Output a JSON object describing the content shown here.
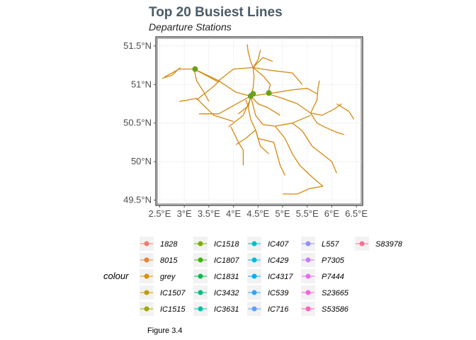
{
  "chart_data": {
    "type": "line",
    "title": "Top 20 Busiest Lines",
    "subtitle": "Departure Stations",
    "xlabel": "",
    "ylabel": "",
    "caption": "Figure 3.4",
    "xlim": [
      2.45,
      6.6
    ],
    "ylim": [
      49.45,
      51.6
    ],
    "x_ticks": [
      2.5,
      3.0,
      3.5,
      4.0,
      4.5,
      5.0,
      5.5,
      6.0,
      6.5
    ],
    "x_tick_labels": [
      "2.5°E",
      "3°E",
      "3.5°E",
      "4°E",
      "4.5°E",
      "5°E",
      "5.5°E",
      "6°E",
      "6.5°E"
    ],
    "y_ticks": [
      49.5,
      50.0,
      50.5,
      51.0,
      51.5
    ],
    "y_tick_labels": [
      "49.5°N",
      "50°N",
      "50.5°N",
      "51°N",
      "51.5°N"
    ],
    "grid": true,
    "legend_position": "bottom",
    "line_color": "#d4890f",
    "rail_lines": [
      [
        [
          2.6,
          51.1
        ],
        [
          2.9,
          51.2
        ],
        [
          3.2,
          51.2
        ],
        [
          3.7,
          51.05
        ],
        [
          4.05,
          50.9
        ],
        [
          4.35,
          50.85
        ]
      ],
      [
        [
          2.55,
          51.08
        ],
        [
          2.75,
          51.12
        ],
        [
          2.92,
          51.22
        ]
      ],
      [
        [
          3.2,
          51.2
        ],
        [
          3.5,
          51.1
        ],
        [
          3.7,
          51.03
        ]
      ],
      [
        [
          3.7,
          51.05
        ],
        [
          4.0,
          51.2
        ],
        [
          4.4,
          51.22
        ]
      ],
      [
        [
          3.25,
          50.8
        ],
        [
          3.55,
          50.95
        ],
        [
          3.72,
          51.05
        ]
      ],
      [
        [
          2.9,
          50.78
        ],
        [
          3.25,
          50.82
        ],
        [
          3.6,
          50.6
        ],
        [
          4.0,
          50.52
        ]
      ],
      [
        [
          3.3,
          50.62
        ],
        [
          3.7,
          50.62
        ],
        [
          4.35,
          50.85
        ]
      ],
      [
        [
          3.9,
          50.45
        ],
        [
          4.2,
          50.6
        ],
        [
          4.35,
          50.82
        ]
      ],
      [
        [
          4.35,
          50.85
        ],
        [
          4.4,
          50.95
        ],
        [
          4.42,
          51.1
        ],
        [
          4.4,
          51.22
        ],
        [
          4.35,
          51.3
        ],
        [
          4.3,
          51.42
        ],
        [
          4.28,
          51.52
        ]
      ],
      [
        [
          4.4,
          51.22
        ],
        [
          4.5,
          51.32
        ],
        [
          4.55,
          51.45
        ]
      ],
      [
        [
          4.4,
          51.22
        ],
        [
          4.62,
          51.1
        ],
        [
          4.75,
          51.0
        ],
        [
          4.7,
          50.88
        ]
      ],
      [
        [
          4.4,
          51.22
        ],
        [
          4.8,
          51.18
        ],
        [
          5.2,
          51.15
        ],
        [
          5.4,
          51.0
        ]
      ],
      [
        [
          4.4,
          51.22
        ],
        [
          4.6,
          51.35
        ],
        [
          4.8,
          51.3
        ]
      ],
      [
        [
          4.35,
          50.85
        ],
        [
          4.7,
          50.88
        ],
        [
          5.2,
          50.93
        ],
        [
          5.5,
          50.95
        ],
        [
          5.7,
          50.88
        ]
      ],
      [
        [
          4.7,
          50.88
        ],
        [
          5.0,
          50.82
        ],
        [
          5.3,
          50.75
        ],
        [
          5.57,
          50.63
        ]
      ],
      [
        [
          5.57,
          50.63
        ],
        [
          5.8,
          50.6
        ],
        [
          6.05,
          50.68
        ],
        [
          6.2,
          50.75
        ]
      ],
      [
        [
          5.57,
          50.63
        ],
        [
          5.7,
          50.5
        ],
        [
          5.85,
          50.45
        ],
        [
          6.1,
          50.38
        ],
        [
          6.25,
          50.35
        ]
      ],
      [
        [
          4.35,
          50.85
        ],
        [
          4.45,
          50.6
        ],
        [
          4.6,
          50.48
        ],
        [
          4.85,
          50.46
        ],
        [
          5.2,
          50.5
        ],
        [
          5.57,
          50.6
        ]
      ],
      [
        [
          4.35,
          50.85
        ],
        [
          4.3,
          50.7
        ],
        [
          4.35,
          50.55
        ],
        [
          4.45,
          50.41
        ],
        [
          4.55,
          50.2
        ],
        [
          4.72,
          50.1
        ]
      ],
      [
        [
          4.45,
          50.41
        ],
        [
          4.5,
          50.3
        ],
        [
          4.82,
          50.25
        ],
        [
          4.95,
          49.95
        ],
        [
          5.05,
          49.82
        ]
      ],
      [
        [
          4.85,
          50.46
        ],
        [
          5.05,
          50.3
        ],
        [
          5.2,
          50.1
        ],
        [
          5.35,
          49.95
        ],
        [
          5.6,
          49.8
        ],
        [
          5.82,
          49.68
        ]
      ],
      [
        [
          5.82,
          49.68
        ],
        [
          5.55,
          49.65
        ],
        [
          5.3,
          49.58
        ],
        [
          5.0,
          49.58
        ]
      ],
      [
        [
          3.95,
          50.45
        ],
        [
          4.1,
          50.25
        ],
        [
          4.2,
          50.15
        ],
        [
          4.2,
          49.95
        ]
      ],
      [
        [
          4.45,
          50.41
        ],
        [
          4.25,
          50.3
        ],
        [
          4.05,
          50.22
        ]
      ],
      [
        [
          5.2,
          50.5
        ],
        [
          5.4,
          50.4
        ],
        [
          5.6,
          50.2
        ],
        [
          5.8,
          50.1
        ],
        [
          6.0,
          50.0
        ],
        [
          6.1,
          49.85
        ]
      ],
      [
        [
          5.57,
          50.63
        ],
        [
          5.7,
          50.8
        ],
        [
          5.72,
          50.95
        ],
        [
          5.75,
          51.05
        ]
      ],
      [
        [
          4.35,
          50.85
        ],
        [
          4.5,
          50.75
        ],
        [
          4.7,
          50.7
        ],
        [
          4.95,
          50.6
        ]
      ],
      [
        [
          3.2,
          51.2
        ],
        [
          3.25,
          51.05
        ],
        [
          3.4,
          50.9
        ],
        [
          3.5,
          50.78
        ]
      ],
      [
        [
          6.1,
          50.75
        ],
        [
          6.35,
          50.65
        ],
        [
          6.45,
          50.55
        ]
      ],
      [
        [
          4.1,
          50.62
        ],
        [
          4.3,
          50.72
        ],
        [
          4.25,
          50.8
        ]
      ]
    ],
    "station_color": "#6aa01b",
    "stations": [
      {
        "x": 3.22,
        "y": 51.2
      },
      {
        "x": 4.35,
        "y": 50.85
      },
      {
        "x": 4.4,
        "y": 50.88
      },
      {
        "x": 4.72,
        "y": 50.89
      }
    ],
    "legend": {
      "title": "colour",
      "items": [
        {
          "label": "1828",
          "color": "#f8766d"
        },
        {
          "label": "8015",
          "color": "#ea8331"
        },
        {
          "label": "grey",
          "color": "#d89000"
        },
        {
          "label": "IC1507",
          "color": "#c09b00"
        },
        {
          "label": "IC1515",
          "color": "#a3a500"
        },
        {
          "label": "IC1518",
          "color": "#7cae00"
        },
        {
          "label": "IC1807",
          "color": "#39b600"
        },
        {
          "label": "IC1831",
          "color": "#00bb4e"
        },
        {
          "label": "IC3432",
          "color": "#00bf7d"
        },
        {
          "label": "IC3631",
          "color": "#00c1a3"
        },
        {
          "label": "IC407",
          "color": "#00bfc4"
        },
        {
          "label": "IC429",
          "color": "#00bae0"
        },
        {
          "label": "IC4317",
          "color": "#00b0f6"
        },
        {
          "label": "IC539",
          "color": "#35a2ff"
        },
        {
          "label": "IC716",
          "color": "#619cff"
        },
        {
          "label": "L557",
          "color": "#9590ff"
        },
        {
          "label": "P7305",
          "color": "#c77cff"
        },
        {
          "label": "P7444",
          "color": "#e76bf3"
        },
        {
          "label": "S23665",
          "color": "#fa62db"
        },
        {
          "label": "S53586",
          "color": "#ff62bc"
        },
        {
          "label": "S83978",
          "color": "#ff6c91"
        }
      ]
    }
  }
}
